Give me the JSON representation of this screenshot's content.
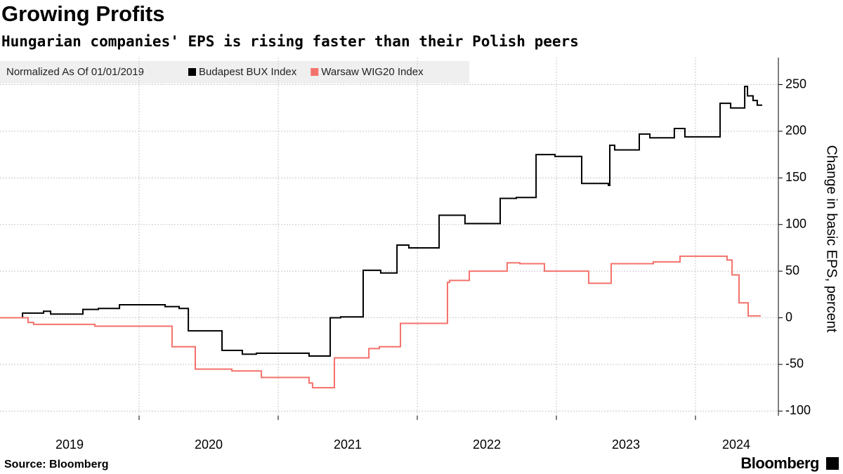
{
  "chart_data": {
    "type": "line",
    "step": true,
    "title": "Growing Profits",
    "subtitle": "Hungarian companies' EPS is rising faster than their Polish peers",
    "legend_title": "Normalized As Of 01/01/2019",
    "ylabel": "Change in basic EPS, percent",
    "source": "Source: Bloomberg",
    "brand": "Bloomberg",
    "xlim": [
      2019,
      2024.596
    ],
    "xticks": [
      {
        "value": 2019.5,
        "label": "2019"
      },
      {
        "value": 2020.5,
        "label": "2020"
      },
      {
        "value": 2021.5,
        "label": "2021"
      },
      {
        "value": 2022.5,
        "label": "2022"
      },
      {
        "value": 2023.5,
        "label": "2023"
      },
      {
        "value": 2024.293,
        "label": "2024"
      }
    ],
    "xgrid": [
      2020,
      2021,
      2022,
      2023,
      2024
    ],
    "ylim": [
      -105,
      279
    ],
    "yticks": [
      -100,
      -50,
      0,
      50,
      100,
      150,
      200,
      250
    ],
    "grid": true,
    "series": [
      {
        "name": "Budapest BUX Index",
        "color": "#000000",
        "x": [
          2019.0,
          2019.162,
          2019.313,
          2019.364,
          2019.596,
          2019.707,
          2019.859,
          2020.187,
          2020.288,
          2020.354,
          2020.596,
          2020.742,
          2020.843,
          2021.222,
          2021.374,
          2021.449,
          2021.611,
          2021.737,
          2021.854,
          2021.939,
          2022.157,
          2022.343,
          2022.596,
          2022.712,
          2022.854,
          2022.99,
          2023.182,
          2023.374,
          2023.384,
          2023.419,
          2023.596,
          2023.672,
          2023.848,
          2023.924,
          2024.177,
          2024.253,
          2024.354,
          2024.374,
          2024.414,
          2024.444,
          2024.48
        ],
        "values": [
          0,
          5,
          7,
          4,
          9,
          10,
          14,
          12,
          10,
          -14,
          -35,
          -39,
          -38,
          -41,
          0,
          1,
          51,
          48,
          78,
          75,
          110,
          101,
          128,
          129,
          175,
          173,
          144,
          142,
          185,
          180,
          197,
          193,
          203,
          194,
          230,
          225,
          248,
          238,
          233,
          228,
          228
        ]
      },
      {
        "name": "Warsaw WIG20 Index",
        "color": "#f4716b",
        "x": [
          2019.0,
          2019.202,
          2019.242,
          2019.682,
          2019.884,
          2020.237,
          2020.404,
          2020.667,
          2020.879,
          2021.222,
          2021.247,
          2021.404,
          2021.652,
          2021.727,
          2021.879,
          2022.217,
          2022.232,
          2022.374,
          2022.646,
          2022.737,
          2022.914,
          2023.232,
          2023.394,
          2023.697,
          2023.889,
          2024.227,
          2024.263,
          2024.313,
          2024.379,
          2024.47
        ],
        "values": [
          0,
          -5,
          -7,
          -9,
          -9,
          -31,
          -55,
          -57,
          -64,
          -70,
          -75,
          -43,
          -33,
          -31,
          -6,
          38,
          40,
          50,
          59,
          58,
          50,
          37,
          58,
          60,
          66,
          62,
          46,
          16,
          2,
          2
        ]
      }
    ]
  }
}
